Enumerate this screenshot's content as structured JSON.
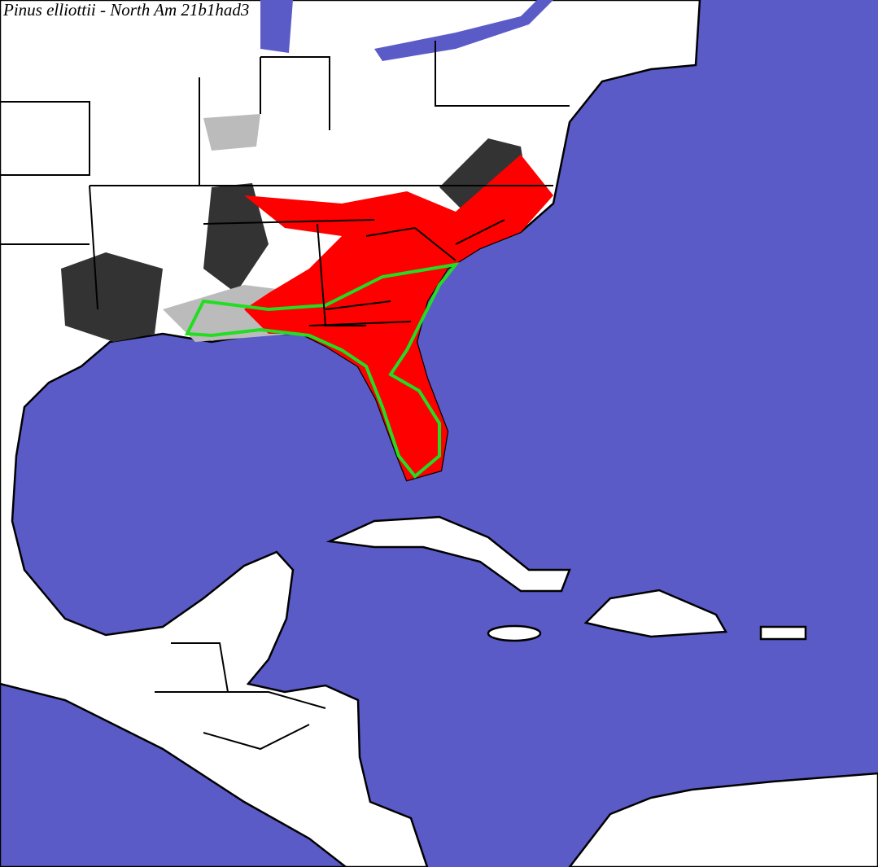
{
  "title": "Pinus elliottii - North Am 21b1had3"
}
